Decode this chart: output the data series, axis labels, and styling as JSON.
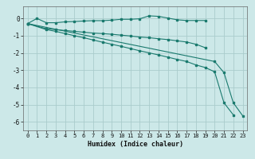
{
  "xlabel": "Humidex (Indice chaleur)",
  "bg_color": "#cce8e8",
  "grid_color": "#aacccc",
  "line_color": "#1a7a6e",
  "xlim": [
    -0.5,
    23.5
  ],
  "ylim": [
    -6.5,
    0.7
  ],
  "yticks": [
    0,
    -1,
    -2,
    -3,
    -4,
    -5,
    -6
  ],
  "xticks": [
    0,
    1,
    2,
    3,
    4,
    5,
    6,
    7,
    8,
    9,
    10,
    11,
    12,
    13,
    14,
    15,
    16,
    17,
    18,
    19,
    20,
    21,
    22,
    23
  ],
  "series": [
    {
      "x": [
        0,
        1,
        2,
        3,
        4,
        5,
        6,
        7,
        8,
        9,
        10,
        11,
        12,
        13,
        14,
        15,
        16,
        17,
        18,
        19
      ],
      "y": [
        -0.3,
        0.0,
        -0.25,
        -0.25,
        -0.2,
        -0.18,
        -0.15,
        -0.13,
        -0.13,
        -0.1,
        -0.05,
        -0.05,
        -0.02,
        0.15,
        0.12,
        0.02,
        -0.08,
        -0.12,
        -0.12,
        -0.12
      ]
    },
    {
      "x": [
        0,
        2,
        3,
        4,
        5,
        6,
        7,
        8,
        9,
        10,
        11,
        12,
        13,
        14,
        15,
        16,
        17,
        18,
        19
      ],
      "y": [
        -0.3,
        -0.6,
        -0.65,
        -0.7,
        -0.75,
        -0.8,
        -0.85,
        -0.88,
        -0.92,
        -0.97,
        -1.02,
        -1.08,
        -1.12,
        -1.18,
        -1.23,
        -1.3,
        -1.37,
        -1.5,
        -1.7
      ]
    },
    {
      "x": [
        0,
        2,
        3,
        4,
        5,
        6,
        7,
        8,
        9,
        10,
        11,
        12,
        13,
        14,
        15,
        16,
        17,
        18,
        19,
        20,
        21,
        22
      ],
      "y": [
        -0.3,
        -0.65,
        -0.75,
        -0.88,
        -1.0,
        -1.12,
        -1.25,
        -1.38,
        -1.5,
        -1.62,
        -1.75,
        -1.88,
        -2.0,
        -2.12,
        -2.25,
        -2.38,
        -2.5,
        -2.7,
        -2.85,
        -3.1,
        -4.9,
        -5.6
      ]
    },
    {
      "x": [
        0,
        20,
        21,
        22,
        23
      ],
      "y": [
        -0.3,
        -2.5,
        -3.15,
        -4.9,
        -5.65
      ]
    }
  ]
}
